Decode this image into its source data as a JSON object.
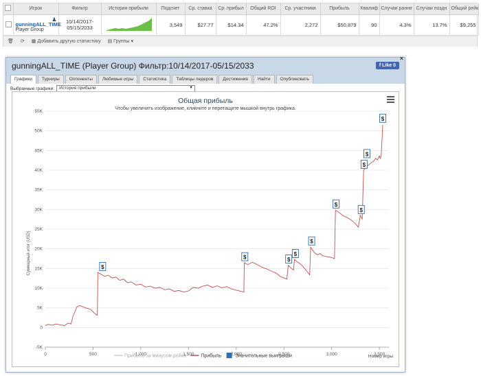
{
  "table": {
    "headers": [
      "Игрок",
      "Фильтр",
      "История прибыли",
      "Подсчет",
      "Ср. ставка",
      "Ср. прибыл",
      "Общий ROI",
      "Ср. участники",
      "Прибыль",
      "Квалиф",
      "Случаи ранне",
      "Случаи поздн",
      "Общий рейк"
    ],
    "row": {
      "player_name": "gunningALL_TIME",
      "player_group": "Player Group",
      "filter": "10/14/2017-05/15/2033",
      "count": "3,549",
      "avg_stake": "$27.77",
      "avg_profit": "$14.34",
      "roi": "47.2%",
      "avg_entrants": "2,272",
      "profit": "$50,879",
      "qualif": "90",
      "early": "4.3%",
      "late": "13.7%",
      "rake": "$9,255"
    }
  },
  "toolbar": {
    "add_stats": "Добавить другую статистику",
    "groups": "Группы"
  },
  "panel": {
    "title": "gunningALL_TIME (Player Group) Фильтр:10/14/2017-05/15/2033",
    "like": "Like 0",
    "close": "×",
    "tabs": [
      "Графики",
      "Турниры",
      "Оппоненты",
      "Любимые игры",
      "Статистика",
      "Таблицы лидеров",
      "Достижения",
      "Найти",
      "Опубликовать"
    ],
    "selector_label": "Выбранные графики:",
    "selector_value": "История прибыли"
  },
  "chart_data": {
    "type": "line",
    "title": "Общая прибыль",
    "subtitle": "Чтобы увеличить изображение, кликните и перетащите мышкой внутрь графика.",
    "ylabel": "Суммарный итог (USD)",
    "xlabel": "Номер игры",
    "ylim": [
      -5000,
      55000
    ],
    "xlim": [
      0,
      3600
    ],
    "yticks": [
      "-5K",
      "0",
      "5K",
      "10K",
      "15K",
      "20K",
      "25K",
      "30K",
      "35K",
      "40K",
      "45K",
      "50K",
      "55K"
    ],
    "xticks": [
      "0",
      "500",
      "1,000",
      "1,500",
      "2,000",
      "2,500",
      "3,000",
      "3,500"
    ],
    "legend": [
      "Прибыль за минусом рейка",
      "Прибыль",
      "Значительные выигрыши"
    ],
    "colors": {
      "profit": "#c0504d",
      "rakeless": "#cccccc",
      "bigwin": "#2f6fb0"
    },
    "series": [
      {
        "name": "Прибыль",
        "points": [
          [
            0,
            500
          ],
          [
            30,
            800
          ],
          [
            70,
            600
          ],
          [
            110,
            900
          ],
          [
            150,
            700
          ],
          [
            200,
            500
          ],
          [
            240,
            1100
          ],
          [
            270,
            900
          ],
          [
            290,
            3000
          ],
          [
            310,
            4000
          ],
          [
            330,
            5200
          ],
          [
            360,
            5600
          ],
          [
            390,
            5300
          ],
          [
            420,
            5000
          ],
          [
            450,
            4800
          ],
          [
            480,
            4500
          ],
          [
            500,
            4000
          ],
          [
            520,
            3500
          ],
          [
            545,
            3100
          ],
          [
            550,
            14000
          ],
          [
            580,
            13600
          ],
          [
            620,
            13000
          ],
          [
            660,
            13300
          ],
          [
            700,
            12600
          ],
          [
            740,
            12800
          ],
          [
            780,
            12000
          ],
          [
            820,
            12300
          ],
          [
            860,
            11400
          ],
          [
            900,
            11600
          ],
          [
            950,
            10800
          ],
          [
            1000,
            11000
          ],
          [
            1050,
            10300
          ],
          [
            1100,
            10500
          ],
          [
            1150,
            10000
          ],
          [
            1200,
            10200
          ],
          [
            1250,
            9600
          ],
          [
            1300,
            9800
          ],
          [
            1350,
            9200
          ],
          [
            1400,
            9400
          ],
          [
            1450,
            9000
          ],
          [
            1500,
            9300
          ],
          [
            1550,
            10200
          ],
          [
            1600,
            10000
          ],
          [
            1650,
            10500
          ],
          [
            1700,
            10800
          ],
          [
            1750,
            10200
          ],
          [
            1800,
            10600
          ],
          [
            1850,
            10100
          ],
          [
            1900,
            10400
          ],
          [
            1950,
            9800
          ],
          [
            2000,
            9500
          ],
          [
            2050,
            9200
          ],
          [
            2080,
            9000
          ],
          [
            2085,
            16500
          ],
          [
            2120,
            16000
          ],
          [
            2170,
            16600
          ],
          [
            2220,
            16000
          ],
          [
            2270,
            15300
          ],
          [
            2320,
            14900
          ],
          [
            2380,
            14200
          ],
          [
            2420,
            13800
          ],
          [
            2460,
            13000
          ],
          [
            2500,
            12600
          ],
          [
            2530,
            12300
          ],
          [
            2545,
            15800
          ],
          [
            2570,
            15200
          ],
          [
            2600,
            14600
          ],
          [
            2610,
            17300
          ],
          [
            2640,
            16700
          ],
          [
            2680,
            16000
          ],
          [
            2710,
            15200
          ],
          [
            2750,
            14000
          ],
          [
            2770,
            13400
          ],
          [
            2780,
            20400
          ],
          [
            2820,
            19000
          ],
          [
            2850,
            18500
          ],
          [
            2880,
            18800
          ],
          [
            2900,
            18300
          ],
          [
            2950,
            18000
          ],
          [
            3000,
            17800
          ],
          [
            3030,
            17500
          ],
          [
            3040,
            29800
          ],
          [
            3080,
            29200
          ],
          [
            3120,
            28400
          ],
          [
            3160,
            28000
          ],
          [
            3200,
            27400
          ],
          [
            3240,
            26600
          ],
          [
            3270,
            25800
          ],
          [
            3280,
            25500
          ],
          [
            3300,
            28500
          ],
          [
            3320,
            27600
          ],
          [
            3335,
            40000
          ],
          [
            3360,
            40800
          ],
          [
            3380,
            41200
          ],
          [
            3400,
            41600
          ],
          [
            3420,
            42000
          ],
          [
            3440,
            42300
          ],
          [
            3460,
            43000
          ],
          [
            3480,
            42600
          ],
          [
            3500,
            43600
          ],
          [
            3510,
            43000
          ],
          [
            3520,
            44000
          ],
          [
            3535,
            51500
          ]
        ]
      },
      {
        "name": "Значительные выигрыши",
        "points": [
          [
            600,
            15500
          ],
          [
            2090,
            18000
          ],
          [
            2550,
            17400
          ],
          [
            2620,
            18800
          ],
          [
            2790,
            22000
          ],
          [
            3045,
            31400
          ],
          [
            3310,
            30000
          ],
          [
            3340,
            41500
          ],
          [
            3370,
            44200
          ],
          [
            3535,
            53200
          ]
        ]
      }
    ]
  }
}
